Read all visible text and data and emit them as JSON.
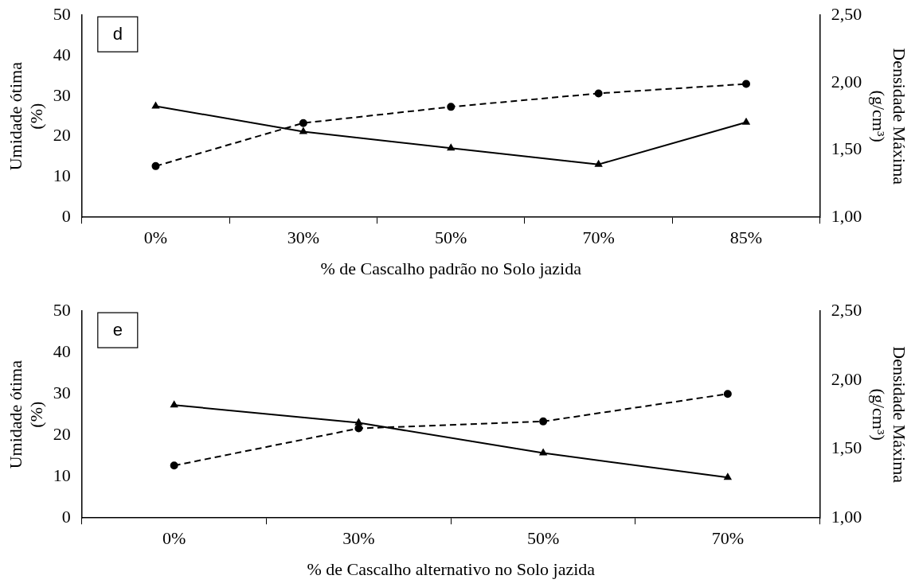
{
  "chart_data": [
    {
      "type": "line",
      "categories": [
        "0%",
        "30%",
        "50%",
        "70%",
        "85%"
      ],
      "xlabel": "% de Cascalho padrão no Solo jazida",
      "ylabel": "Umidade ótima (%)",
      "y2label": "Densidade Máxima (g/cm³)",
      "annotations": [
        "d"
      ],
      "ylim": [
        0,
        50
      ],
      "yticks": [
        0,
        10,
        20,
        30,
        40,
        50
      ],
      "y2lim": [
        1,
        2.5
      ],
      "y2ticks": [
        {
          "value": 1,
          "label": "1,00"
        },
        {
          "value": 1.5,
          "label": "1,50"
        },
        {
          "value": 2,
          "label": "2,00"
        },
        {
          "value": 2.5,
          "label": "2,50"
        }
      ],
      "grid": false,
      "legend": false,
      "series": [
        {
          "color": "#000000",
          "marker": "triangle",
          "line_style": "solid",
          "values": [
            27.5,
            21.2,
            17.1,
            13.1,
            23.5
          ]
        },
        {
          "color": "#000000",
          "marker": "circle",
          "line_style": "dashed",
          "axis": "y2",
          "values": [
            1.38,
            1.7,
            1.82,
            1.92,
            1.99
          ]
        }
      ]
    },
    {
      "type": "line",
      "categories": [
        "0%",
        "30%",
        "50%",
        "70%"
      ],
      "xlabel": "% de Cascalho alternativo no Solo jazida",
      "ylabel": "Umidade ótima (%)",
      "y2label": "Densidade Máxima (g/cm³)",
      "annotations": [
        "e"
      ],
      "ylim": [
        0,
        50
      ],
      "yticks": [
        0,
        10,
        20,
        30,
        40,
        50
      ],
      "y2lim": [
        1,
        2.5
      ],
      "y2ticks": [
        {
          "value": 1,
          "label": "1,00"
        },
        {
          "value": 1.5,
          "label": "1,50"
        },
        {
          "value": 2,
          "label": "2,00"
        },
        {
          "value": 2.5,
          "label": "2,50"
        }
      ],
      "grid": false,
      "legend": false,
      "series": [
        {
          "color": "#000000",
          "marker": "triangle",
          "line_style": "solid",
          "values": [
            27.3,
            23.0,
            15.7,
            9.8
          ]
        },
        {
          "color": "#000000",
          "marker": "circle",
          "line_style": "dashed",
          "axis": "y2",
          "values": [
            1.38,
            1.65,
            1.7,
            1.9
          ]
        }
      ]
    }
  ]
}
